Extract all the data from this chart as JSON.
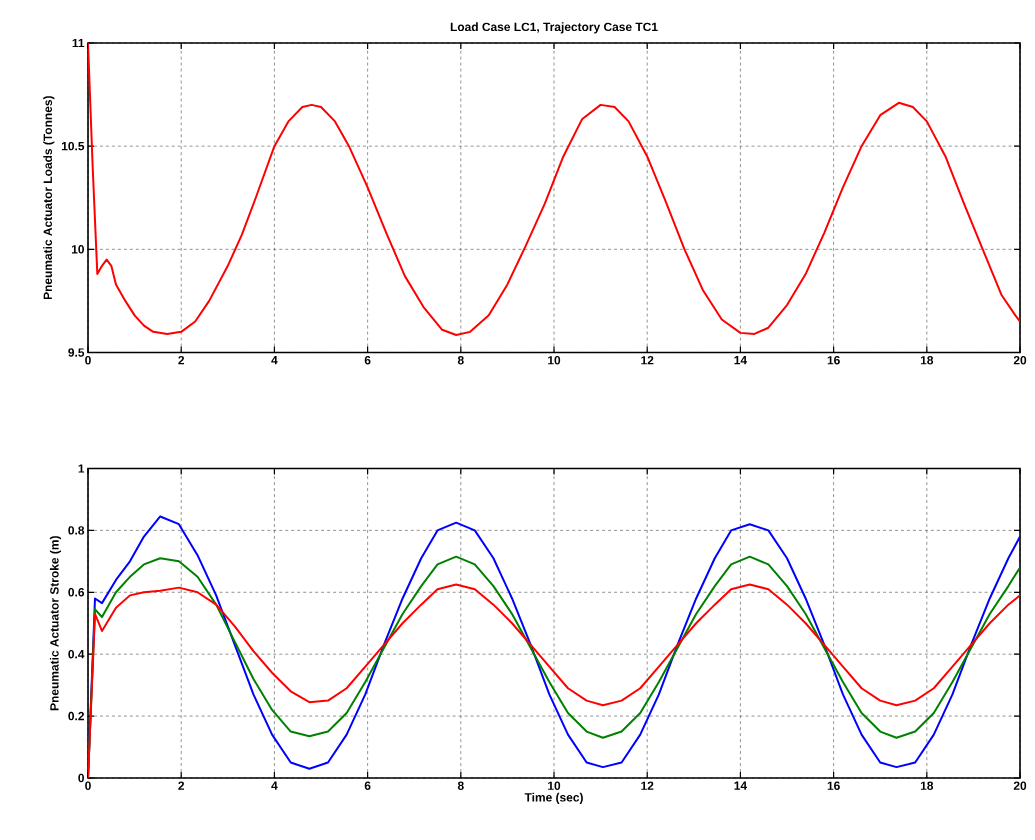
{
  "chart_data": [
    {
      "type": "line",
      "title": "Load Case LC1, Trajectory Case TC1",
      "ylabel": "Pneumatic Actuator Loads (Tonnes)",
      "x": [
        0,
        0.1,
        0.2,
        0.3,
        0.4,
        0.5,
        0.6,
        0.8,
        1.0,
        1.2,
        1.4,
        1.7,
        2.0,
        2.3,
        2.6,
        3.0,
        3.3,
        3.6,
        4.0,
        4.3,
        4.6,
        4.8,
        5.0,
        5.3,
        5.6,
        6.0,
        6.4,
        6.8,
        7.2,
        7.6,
        7.9,
        8.2,
        8.6,
        9.0,
        9.4,
        9.8,
        10.2,
        10.6,
        11.0,
        11.3,
        11.6,
        12.0,
        12.4,
        12.8,
        13.2,
        13.6,
        14.0,
        14.3,
        14.6,
        15.0,
        15.4,
        15.8,
        16.2,
        16.6,
        17.0,
        17.4,
        17.7,
        18.0,
        18.4,
        18.8,
        19.2,
        19.6,
        19.9,
        20
      ],
      "series": [
        {
          "color": "#ff0000",
          "values": [
            11.0,
            10.4,
            9.88,
            9.92,
            9.95,
            9.92,
            9.83,
            9.75,
            9.68,
            9.63,
            9.6,
            9.59,
            9.6,
            9.65,
            9.75,
            9.92,
            10.07,
            10.25,
            10.5,
            10.62,
            10.69,
            10.7,
            10.69,
            10.62,
            10.5,
            10.3,
            10.08,
            9.87,
            9.72,
            9.61,
            9.585,
            9.6,
            9.68,
            9.83,
            10.02,
            10.22,
            10.45,
            10.63,
            10.7,
            10.69,
            10.62,
            10.45,
            10.23,
            10.0,
            9.8,
            9.66,
            9.595,
            9.59,
            9.62,
            9.73,
            9.88,
            10.08,
            10.3,
            10.5,
            10.65,
            10.71,
            10.69,
            10.62,
            10.45,
            10.22,
            10.0,
            9.78,
            9.68,
            9.65
          ]
        }
      ],
      "xlim": [
        0,
        20
      ],
      "ylim": [
        9.5,
        11
      ],
      "xticks": [
        0,
        2,
        4,
        6,
        8,
        10,
        12,
        14,
        16,
        18,
        20
      ],
      "yticks": [
        9.5,
        10,
        10.5,
        11
      ],
      "grid": true
    },
    {
      "type": "line",
      "xlabel": "Time (sec)",
      "ylabel": "Pneumatic Actuator Stroke (m)",
      "x": [
        0,
        0.15,
        0.3,
        0.6,
        0.9,
        1.2,
        1.55,
        1.95,
        2.35,
        2.75,
        3.15,
        3.55,
        3.95,
        4.35,
        4.75,
        5.15,
        5.55,
        5.95,
        6.35,
        6.75,
        7.15,
        7.5,
        7.9,
        8.3,
        8.7,
        9.1,
        9.5,
        9.9,
        10.3,
        10.7,
        11.05,
        11.45,
        11.85,
        12.25,
        12.65,
        13.05,
        13.45,
        13.8,
        14.2,
        14.6,
        15.0,
        15.4,
        15.8,
        16.2,
        16.6,
        17.0,
        17.35,
        17.75,
        18.15,
        18.55,
        18.95,
        19.35,
        19.75,
        20
      ],
      "series": [
        {
          "color": "#0000ff",
          "values": [
            0,
            0.58,
            0.565,
            0.64,
            0.7,
            0.78,
            0.845,
            0.82,
            0.72,
            0.59,
            0.43,
            0.27,
            0.14,
            0.05,
            0.03,
            0.05,
            0.14,
            0.27,
            0.43,
            0.58,
            0.71,
            0.8,
            0.825,
            0.8,
            0.71,
            0.58,
            0.43,
            0.27,
            0.14,
            0.05,
            0.035,
            0.05,
            0.14,
            0.27,
            0.43,
            0.58,
            0.71,
            0.8,
            0.82,
            0.8,
            0.71,
            0.58,
            0.43,
            0.27,
            0.14,
            0.05,
            0.035,
            0.05,
            0.14,
            0.27,
            0.43,
            0.58,
            0.71,
            0.78
          ]
        },
        {
          "color": "#008000",
          "values": [
            0,
            0.545,
            0.52,
            0.6,
            0.65,
            0.69,
            0.71,
            0.7,
            0.65,
            0.56,
            0.44,
            0.32,
            0.22,
            0.15,
            0.135,
            0.15,
            0.21,
            0.31,
            0.42,
            0.53,
            0.62,
            0.69,
            0.715,
            0.69,
            0.62,
            0.53,
            0.42,
            0.31,
            0.21,
            0.15,
            0.13,
            0.15,
            0.21,
            0.31,
            0.42,
            0.53,
            0.62,
            0.69,
            0.715,
            0.69,
            0.62,
            0.53,
            0.42,
            0.31,
            0.21,
            0.15,
            0.13,
            0.15,
            0.21,
            0.31,
            0.42,
            0.53,
            0.62,
            0.68
          ]
        },
        {
          "color": "#ff0000",
          "values": [
            0,
            0.53,
            0.475,
            0.55,
            0.59,
            0.6,
            0.605,
            0.615,
            0.6,
            0.56,
            0.49,
            0.41,
            0.34,
            0.28,
            0.245,
            0.25,
            0.29,
            0.36,
            0.43,
            0.5,
            0.56,
            0.61,
            0.625,
            0.61,
            0.56,
            0.5,
            0.43,
            0.36,
            0.29,
            0.25,
            0.235,
            0.25,
            0.29,
            0.36,
            0.43,
            0.5,
            0.56,
            0.61,
            0.625,
            0.61,
            0.56,
            0.5,
            0.43,
            0.36,
            0.29,
            0.25,
            0.235,
            0.25,
            0.29,
            0.36,
            0.43,
            0.5,
            0.56,
            0.59
          ]
        }
      ],
      "xlim": [
        0,
        20
      ],
      "ylim": [
        0,
        1
      ],
      "xticks": [
        0,
        2,
        4,
        6,
        8,
        10,
        12,
        14,
        16,
        18,
        20
      ],
      "yticks": [
        0,
        0.2,
        0.4,
        0.6,
        0.8,
        1
      ],
      "grid": true
    }
  ]
}
